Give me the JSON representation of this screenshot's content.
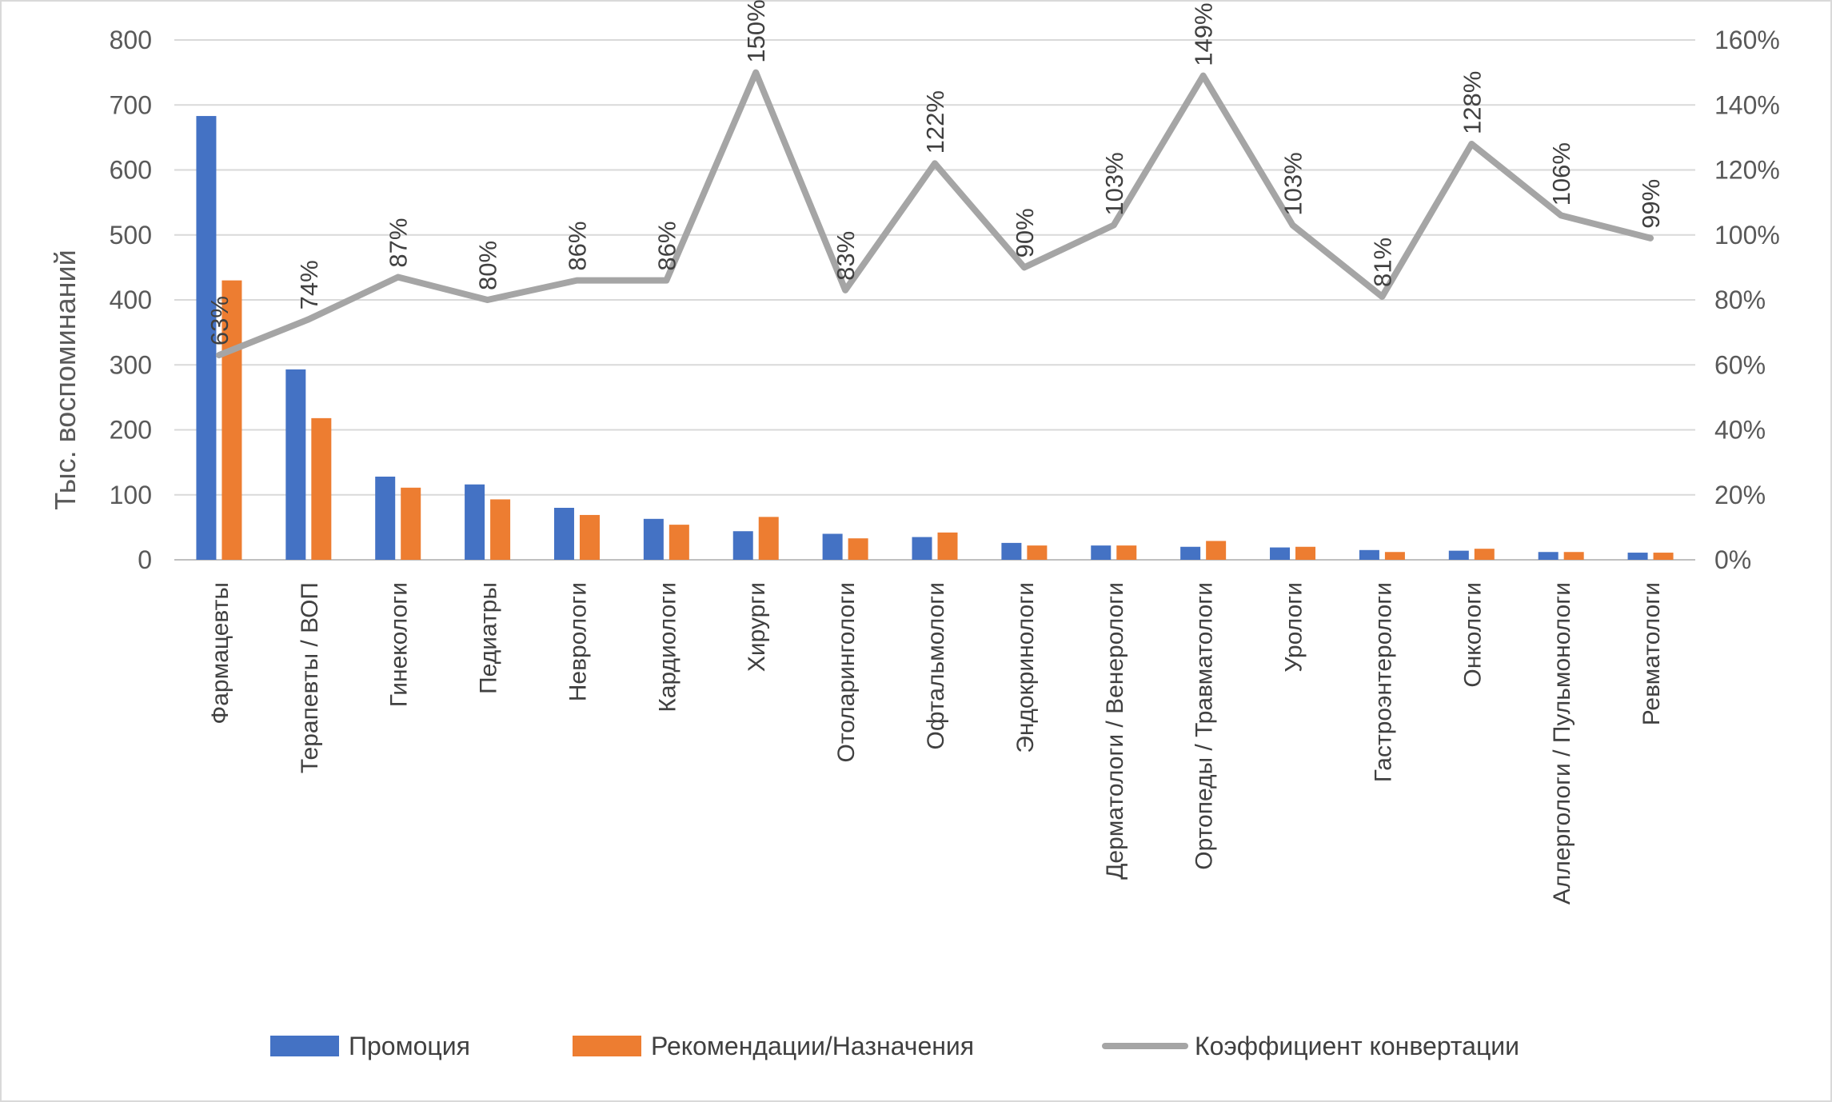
{
  "chart_data": {
    "type": "bar",
    "categories": [
      "Фармацевты",
      "Терапевты / ВОП",
      "Гинекологи",
      "Педиатры",
      "Неврологи",
      "Кардиологи",
      "Хирурги",
      "Отоларингологи",
      "Офтальмологи",
      "Эндокринологи",
      "Дерматологи / Венерологи",
      "Ортопеды / Травматологи",
      "Урологи",
      "Гастроэнтерологи",
      "Онкологи",
      "Аллергологи / Пульмонологи",
      "Ревматологи"
    ],
    "series": [
      {
        "name": "Промоция",
        "type": "bar",
        "axis": "left",
        "color": "#4472c4",
        "values": [
          683,
          293,
          128,
          116,
          80,
          63,
          44,
          40,
          35,
          26,
          22,
          20,
          19,
          15,
          14,
          12,
          11
        ]
      },
      {
        "name": "Рекомендации/Назначения",
        "type": "bar",
        "axis": "left",
        "color": "#ed7d31",
        "values": [
          430,
          218,
          111,
          93,
          69,
          54,
          66,
          33,
          42,
          22,
          22,
          29,
          20,
          12,
          17,
          12,
          11
        ]
      },
      {
        "name": "Коэффициент конвертации",
        "type": "line",
        "axis": "right",
        "color": "#a5a5a5",
        "values": [
          63,
          74,
          87,
          80,
          86,
          86,
          150,
          83,
          122,
          90,
          103,
          149,
          103,
          81,
          128,
          106,
          99
        ],
        "labels": [
          "63%",
          "74%",
          "87%",
          "80%",
          "86%",
          "86%",
          "150%",
          "83%",
          "122%",
          "90%",
          "103%",
          "149%",
          "103%",
          "81%",
          "128%",
          "106%",
          "99%"
        ]
      }
    ],
    "ylabel": "Тыс. воспоминаний",
    "ylim": [
      0,
      800
    ],
    "yticks": [
      "0",
      "100",
      "200",
      "300",
      "400",
      "500",
      "600",
      "700",
      "800"
    ],
    "y2lim": [
      0,
      160
    ],
    "y2ticks": [
      "0%",
      "20%",
      "40%",
      "60%",
      "80%",
      "100%",
      "120%",
      "140%",
      "160%"
    ],
    "grid": true,
    "legend_position": "bottom"
  }
}
